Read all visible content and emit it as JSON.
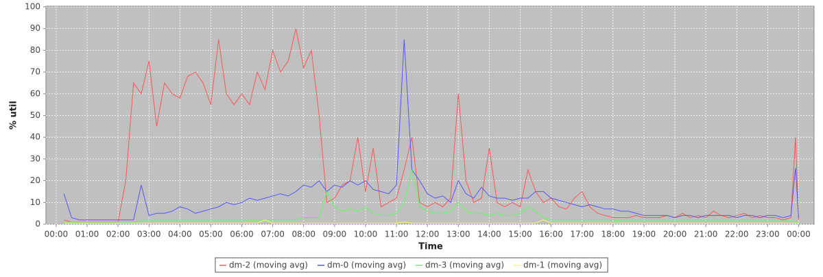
{
  "chart_data": {
    "type": "line",
    "x_label": "Time",
    "y_label": "% util",
    "x": [
      0.25,
      0.5,
      0.75,
      1,
      1.25,
      1.5,
      1.75,
      2,
      2.25,
      2.5,
      2.75,
      3,
      3.25,
      3.5,
      3.75,
      4,
      4.25,
      4.5,
      4.75,
      5,
      5.25,
      5.5,
      5.75,
      6,
      6.25,
      6.5,
      6.75,
      7,
      7.25,
      7.5,
      7.75,
      8,
      8.25,
      8.5,
      8.75,
      9,
      9.25,
      9.5,
      9.75,
      10,
      10.25,
      10.5,
      10.75,
      11,
      11.25,
      11.5,
      11.75,
      12,
      12.25,
      12.5,
      12.75,
      13,
      13.25,
      13.5,
      13.75,
      14,
      14.25,
      14.5,
      14.75,
      15,
      15.25,
      15.5,
      15.75,
      16,
      16.25,
      16.5,
      16.75,
      17,
      17.25,
      17.5,
      17.75,
      18,
      18.25,
      18.5,
      18.75,
      19,
      19.25,
      19.5,
      19.75,
      20,
      20.25,
      20.5,
      20.75,
      21,
      21.25,
      21.5,
      21.75,
      22,
      22.25,
      22.5,
      22.75,
      23,
      23.25,
      23.5,
      23.75,
      23.9,
      24
    ],
    "series": [
      {
        "name": "dm-2 (moving avg)",
        "color": "#ff5555",
        "values": [
          2,
          1,
          1,
          1,
          1,
          1,
          1,
          1,
          20,
          65,
          60,
          75,
          45,
          65,
          60,
          58,
          68,
          70,
          65,
          55,
          85,
          60,
          55,
          60,
          55,
          70,
          62,
          80,
          70,
          75,
          90,
          72,
          80,
          50,
          10,
          12,
          18,
          20,
          40,
          15,
          35,
          8,
          10,
          12,
          25,
          40,
          10,
          8,
          10,
          8,
          12,
          60,
          20,
          10,
          12,
          35,
          10,
          8,
          10,
          8,
          25,
          15,
          10,
          12,
          8,
          7,
          12,
          15,
          8,
          5,
          4,
          3,
          3,
          3,
          4,
          3,
          3,
          3,
          4,
          3,
          5,
          3,
          4,
          3,
          6,
          4,
          3,
          4,
          5,
          3,
          4,
          3,
          3,
          2,
          3,
          40,
          2
        ]
      },
      {
        "name": "dm-0 (moving avg)",
        "color": "#5555ff",
        "values": [
          14,
          3,
          2,
          2,
          2,
          2,
          2,
          2,
          2,
          2,
          18,
          4,
          5,
          5,
          6,
          8,
          7,
          5,
          6,
          7,
          8,
          10,
          9,
          10,
          12,
          11,
          12,
          13,
          14,
          13,
          15,
          18,
          17,
          20,
          15,
          18,
          17,
          20,
          18,
          20,
          16,
          15,
          14,
          18,
          85,
          25,
          20,
          14,
          12,
          13,
          10,
          20,
          14,
          12,
          17,
          13,
          12,
          12,
          11,
          12,
          12,
          15,
          15,
          12,
          11,
          10,
          9,
          8,
          9,
          8,
          7,
          7,
          6,
          6,
          5,
          4,
          4,
          4,
          4,
          3,
          4,
          4,
          3,
          4,
          4,
          4,
          4,
          3,
          4,
          4,
          3,
          4,
          4,
          3,
          4,
          26,
          3
        ]
      },
      {
        "name": "dm-3 (moving avg)",
        "color": "#55ff55",
        "values": [
          1,
          1,
          1,
          1,
          1,
          1,
          1,
          1,
          1,
          1,
          1.5,
          1.5,
          1.5,
          1.5,
          1.5,
          1.5,
          1.5,
          1.5,
          1.5,
          1.5,
          1.5,
          1.5,
          1.5,
          1.5,
          1.5,
          2,
          2,
          2,
          2,
          2,
          2,
          3,
          3,
          3,
          15,
          8,
          6,
          7,
          6,
          8,
          5,
          4,
          4,
          5,
          10,
          25,
          8,
          6,
          5,
          5,
          6,
          10,
          6,
          5,
          5,
          4,
          5,
          4,
          4,
          5,
          8,
          6,
          3,
          2,
          2,
          2,
          2,
          2,
          2,
          2,
          2,
          2,
          1.5,
          1.5,
          1.5,
          1.5,
          1.5,
          1.5,
          1.5,
          1.5,
          1.5,
          1.5,
          1.5,
          1.5,
          1.5,
          1.5,
          1.5,
          1.5,
          1.5,
          1.5,
          1.5,
          1.5,
          1.5,
          1.5,
          1.5,
          1,
          1
        ]
      },
      {
        "name": "dm-1 (moving avg)",
        "color": "#ffff55",
        "values": [
          0.5,
          0.5,
          0.5,
          0.5,
          0.5,
          0.5,
          0.5,
          0.5,
          0.5,
          0.5,
          0.5,
          0.5,
          0.5,
          0.5,
          0.5,
          0.5,
          0.5,
          0.5,
          0.5,
          0.5,
          0.5,
          0.5,
          0.5,
          0.5,
          0.5,
          0.5,
          2,
          0.5,
          0.5,
          0.5,
          0.5,
          0.5,
          0.5,
          0.5,
          0.5,
          0.5,
          0.5,
          0.5,
          0.5,
          0.5,
          0.5,
          0.5,
          0.5,
          0.5,
          1,
          0.5,
          0.5,
          0.5,
          0.5,
          0.5,
          0.5,
          0.5,
          0.5,
          0.5,
          0.5,
          0.5,
          0.5,
          0.5,
          0.5,
          0.5,
          0.5,
          0.5,
          2,
          0.5,
          0.5,
          0.5,
          0.5,
          0.5,
          0.5,
          0.5,
          0.5,
          0.5,
          0.5,
          0.5,
          0.5,
          0.5,
          0.5,
          0.5,
          0.5,
          0.5,
          0.5,
          0.5,
          0.5,
          0.5,
          0.5,
          0.5,
          0.5,
          0.5,
          0.5,
          0.5,
          0.5,
          0.5,
          0.5,
          0.5,
          0.5,
          0.5,
          0.5
        ]
      }
    ],
    "xlim": [
      -0.33,
      24.5
    ],
    "ylim": [
      0,
      100.3
    ],
    "xticks": [
      {
        "value": 0,
        "label": "00:00"
      },
      {
        "value": 1,
        "label": "01:00"
      },
      {
        "value": 2,
        "label": "02:00"
      },
      {
        "value": 3,
        "label": "03:00"
      },
      {
        "value": 4,
        "label": "04:00"
      },
      {
        "value": 5,
        "label": "05:00"
      },
      {
        "value": 6,
        "label": "06:00"
      },
      {
        "value": 7,
        "label": "07:00"
      },
      {
        "value": 8,
        "label": "08:00"
      },
      {
        "value": 9,
        "label": "09:00"
      },
      {
        "value": 10,
        "label": "10:00"
      },
      {
        "value": 11,
        "label": "11:00"
      },
      {
        "value": 12,
        "label": "12:00"
      },
      {
        "value": 13,
        "label": "13:00"
      },
      {
        "value": 14,
        "label": "14:00"
      },
      {
        "value": 15,
        "label": "15:00"
      },
      {
        "value": 16,
        "label": "16:00"
      },
      {
        "value": 17,
        "label": "17:00"
      },
      {
        "value": 18,
        "label": "18:00"
      },
      {
        "value": 19,
        "label": "19:00"
      },
      {
        "value": 20,
        "label": "20:00"
      },
      {
        "value": 21,
        "label": "21:00"
      },
      {
        "value": 22,
        "label": "22:00"
      },
      {
        "value": 23,
        "label": "23:00"
      },
      {
        "value": 24,
        "label": "00:00"
      }
    ],
    "yticks": [
      0,
      10,
      20,
      30,
      40,
      50,
      60,
      70,
      80,
      90,
      100
    ],
    "grid": true,
    "legend": "bottom"
  }
}
